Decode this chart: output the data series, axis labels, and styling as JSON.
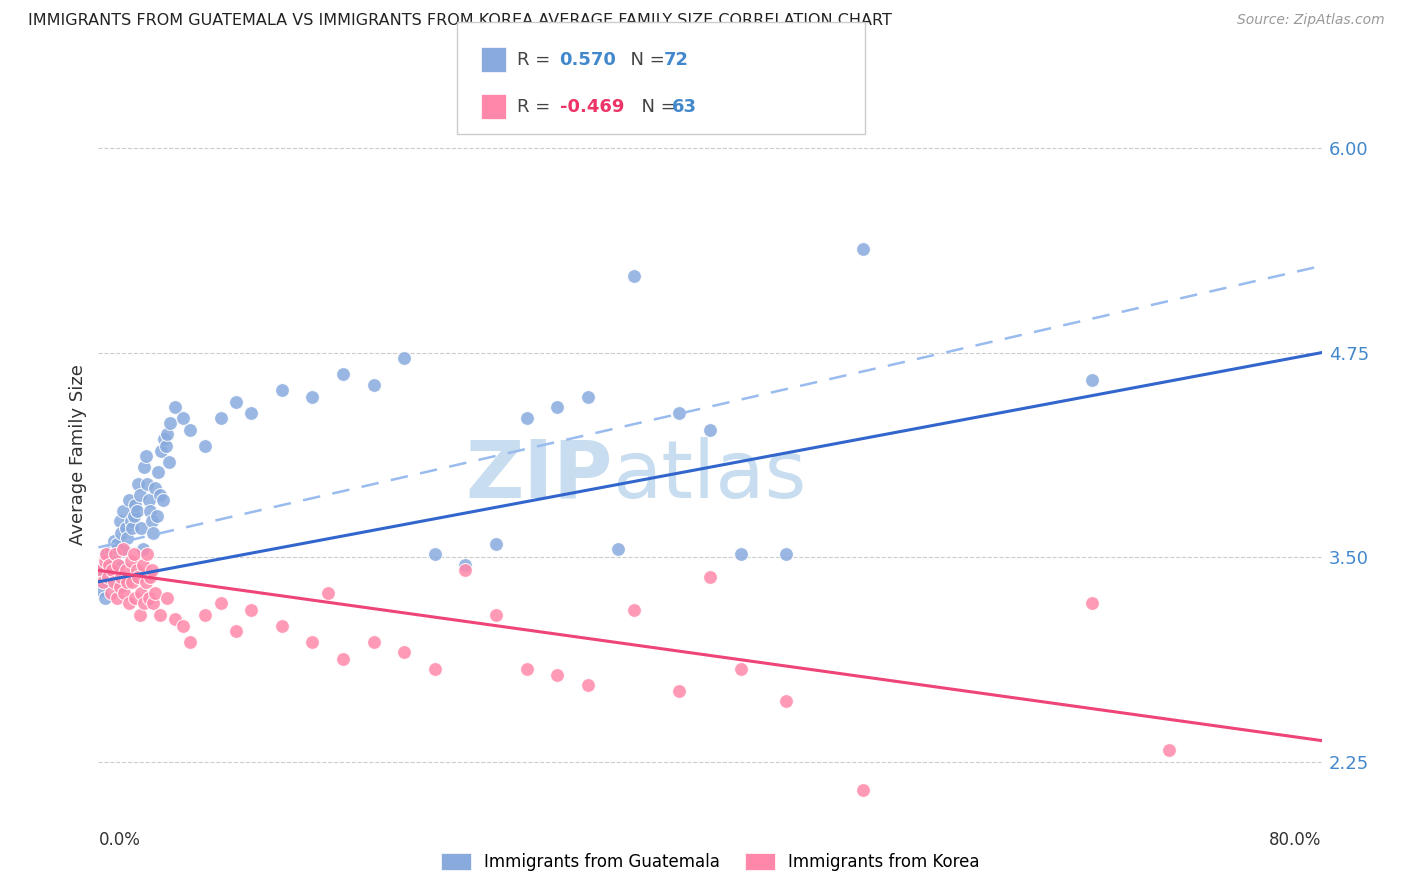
{
  "title": "IMMIGRANTS FROM GUATEMALA VS IMMIGRANTS FROM KOREA AVERAGE FAMILY SIZE CORRELATION CHART",
  "source": "Source: ZipAtlas.com",
  "ylabel": "Average Family Size",
  "yticks": [
    2.25,
    3.5,
    4.75,
    6.0
  ],
  "xlim": [
    0.0,
    80.0
  ],
  "ylim": [
    2.0,
    6.25
  ],
  "guatemala_color": "#88AADD",
  "korea_color": "#FF88AA",
  "background_color": "#ffffff",
  "grid_color": "#cccccc",
  "trend_blue_solid_color": "#3366CC",
  "trend_blue_dashed_color": "#99BBEE",
  "trend_pink_color": "#EE4477",
  "blue_trend_y_start": 3.35,
  "blue_trend_y_end": 4.75,
  "blue_dashed_y_start": 3.56,
  "blue_dashed_y_end": 5.28,
  "pink_trend_y_start": 3.42,
  "pink_trend_y_end": 2.38,
  "right_axis_color": "#4488CC",
  "watermark_color": "#C8DDEF",
  "guatemala_scatter": [
    [
      0.1,
      3.38
    ],
    [
      0.2,
      3.3
    ],
    [
      0.3,
      3.42
    ],
    [
      0.4,
      3.25
    ],
    [
      0.5,
      3.52
    ],
    [
      0.6,
      3.35
    ],
    [
      0.7,
      3.45
    ],
    [
      0.8,
      3.55
    ],
    [
      0.9,
      3.48
    ],
    [
      1.0,
      3.6
    ],
    [
      1.1,
      3.35
    ],
    [
      1.2,
      3.58
    ],
    [
      1.3,
      3.45
    ],
    [
      1.4,
      3.72
    ],
    [
      1.5,
      3.65
    ],
    [
      1.6,
      3.78
    ],
    [
      1.7,
      3.55
    ],
    [
      1.8,
      3.68
    ],
    [
      1.9,
      3.62
    ],
    [
      2.0,
      3.85
    ],
    [
      2.1,
      3.72
    ],
    [
      2.2,
      3.68
    ],
    [
      2.3,
      3.75
    ],
    [
      2.4,
      3.82
    ],
    [
      2.5,
      3.78
    ],
    [
      2.6,
      3.95
    ],
    [
      2.7,
      3.88
    ],
    [
      2.8,
      3.68
    ],
    [
      2.9,
      3.55
    ],
    [
      3.0,
      4.05
    ],
    [
      3.1,
      4.12
    ],
    [
      3.2,
      3.95
    ],
    [
      3.3,
      3.85
    ],
    [
      3.4,
      3.78
    ],
    [
      3.5,
      3.72
    ],
    [
      3.6,
      3.65
    ],
    [
      3.7,
      3.92
    ],
    [
      3.8,
      3.75
    ],
    [
      3.9,
      4.02
    ],
    [
      4.0,
      3.88
    ],
    [
      4.1,
      4.15
    ],
    [
      4.2,
      3.85
    ],
    [
      4.3,
      4.22
    ],
    [
      4.4,
      4.18
    ],
    [
      4.5,
      4.25
    ],
    [
      4.6,
      4.08
    ],
    [
      4.7,
      4.32
    ],
    [
      5.0,
      4.42
    ],
    [
      5.5,
      4.35
    ],
    [
      6.0,
      4.28
    ],
    [
      7.0,
      4.18
    ],
    [
      8.0,
      4.35
    ],
    [
      9.0,
      4.45
    ],
    [
      10.0,
      4.38
    ],
    [
      12.0,
      4.52
    ],
    [
      14.0,
      4.48
    ],
    [
      16.0,
      4.62
    ],
    [
      18.0,
      4.55
    ],
    [
      20.0,
      4.72
    ],
    [
      22.0,
      3.52
    ],
    [
      24.0,
      3.45
    ],
    [
      26.0,
      3.58
    ],
    [
      28.0,
      4.35
    ],
    [
      30.0,
      4.42
    ],
    [
      32.0,
      4.48
    ],
    [
      34.0,
      3.55
    ],
    [
      35.0,
      5.22
    ],
    [
      38.0,
      4.38
    ],
    [
      40.0,
      4.28
    ],
    [
      42.0,
      3.52
    ],
    [
      45.0,
      3.52
    ],
    [
      50.0,
      5.38
    ],
    [
      65.0,
      4.58
    ]
  ],
  "korea_scatter": [
    [
      0.2,
      3.42
    ],
    [
      0.3,
      3.35
    ],
    [
      0.4,
      3.48
    ],
    [
      0.5,
      3.52
    ],
    [
      0.6,
      3.38
    ],
    [
      0.7,
      3.45
    ],
    [
      0.8,
      3.28
    ],
    [
      0.9,
      3.42
    ],
    [
      1.0,
      3.35
    ],
    [
      1.1,
      3.52
    ],
    [
      1.2,
      3.25
    ],
    [
      1.3,
      3.45
    ],
    [
      1.4,
      3.32
    ],
    [
      1.5,
      3.38
    ],
    [
      1.6,
      3.55
    ],
    [
      1.7,
      3.28
    ],
    [
      1.8,
      3.42
    ],
    [
      1.9,
      3.35
    ],
    [
      2.0,
      3.22
    ],
    [
      2.1,
      3.48
    ],
    [
      2.2,
      3.35
    ],
    [
      2.3,
      3.52
    ],
    [
      2.4,
      3.25
    ],
    [
      2.5,
      3.42
    ],
    [
      2.6,
      3.38
    ],
    [
      2.7,
      3.15
    ],
    [
      2.8,
      3.28
    ],
    [
      2.9,
      3.45
    ],
    [
      3.0,
      3.22
    ],
    [
      3.1,
      3.35
    ],
    [
      3.2,
      3.52
    ],
    [
      3.3,
      3.25
    ],
    [
      3.4,
      3.38
    ],
    [
      3.5,
      3.42
    ],
    [
      3.6,
      3.22
    ],
    [
      3.7,
      3.28
    ],
    [
      4.0,
      3.15
    ],
    [
      4.5,
      3.25
    ],
    [
      5.0,
      3.12
    ],
    [
      5.5,
      3.08
    ],
    [
      6.0,
      2.98
    ],
    [
      7.0,
      3.15
    ],
    [
      8.0,
      3.22
    ],
    [
      9.0,
      3.05
    ],
    [
      10.0,
      3.18
    ],
    [
      12.0,
      3.08
    ],
    [
      14.0,
      2.98
    ],
    [
      15.0,
      3.28
    ],
    [
      16.0,
      2.88
    ],
    [
      18.0,
      2.98
    ],
    [
      20.0,
      2.92
    ],
    [
      22.0,
      2.82
    ],
    [
      24.0,
      3.42
    ],
    [
      26.0,
      3.15
    ],
    [
      28.0,
      2.82
    ],
    [
      30.0,
      2.78
    ],
    [
      32.0,
      2.72
    ],
    [
      35.0,
      3.18
    ],
    [
      38.0,
      2.68
    ],
    [
      40.0,
      3.38
    ],
    [
      42.0,
      2.82
    ],
    [
      45.0,
      2.62
    ],
    [
      50.0,
      2.08
    ],
    [
      65.0,
      3.22
    ],
    [
      70.0,
      2.32
    ]
  ]
}
